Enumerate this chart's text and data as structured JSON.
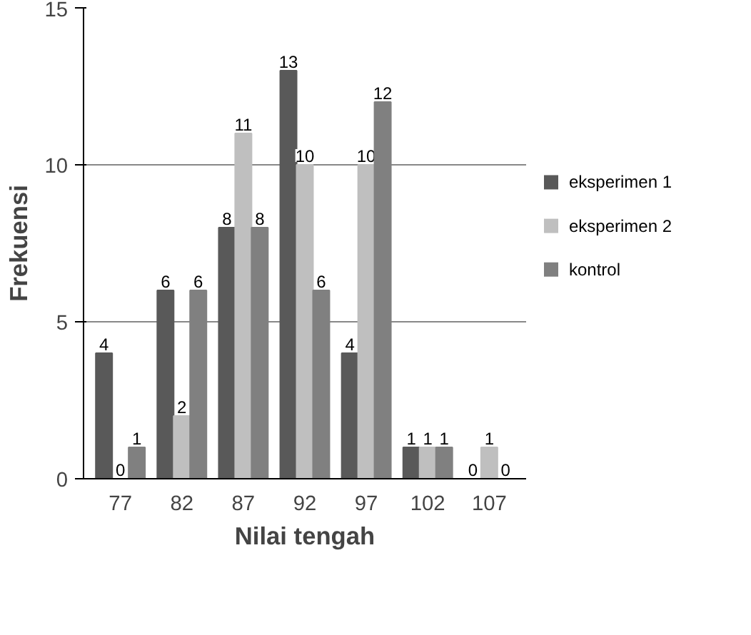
{
  "chart_data": {
    "type": "bar",
    "xlabel": "Nilai tengah",
    "ylabel": "Frekuensi",
    "categories": [
      "77",
      "82",
      "87",
      "92",
      "97",
      "102",
      "107"
    ],
    "series": [
      {
        "name": "eksperimen 1",
        "color": "#595959",
        "values": [
          4,
          6,
          8,
          13,
          4,
          1,
          0
        ]
      },
      {
        "name": "eksperimen 2",
        "color": "#bfbfbf",
        "values": [
          0,
          2,
          11,
          10,
          10,
          1,
          1
        ]
      },
      {
        "name": "kontrol",
        "color": "#808080",
        "values": [
          1,
          6,
          8,
          6,
          12,
          1,
          0
        ]
      }
    ],
    "ylim": [
      0,
      15
    ],
    "yticks": [
      0,
      5,
      10,
      15
    ],
    "grid": "y",
    "legend": "right",
    "data_labels": true
  }
}
